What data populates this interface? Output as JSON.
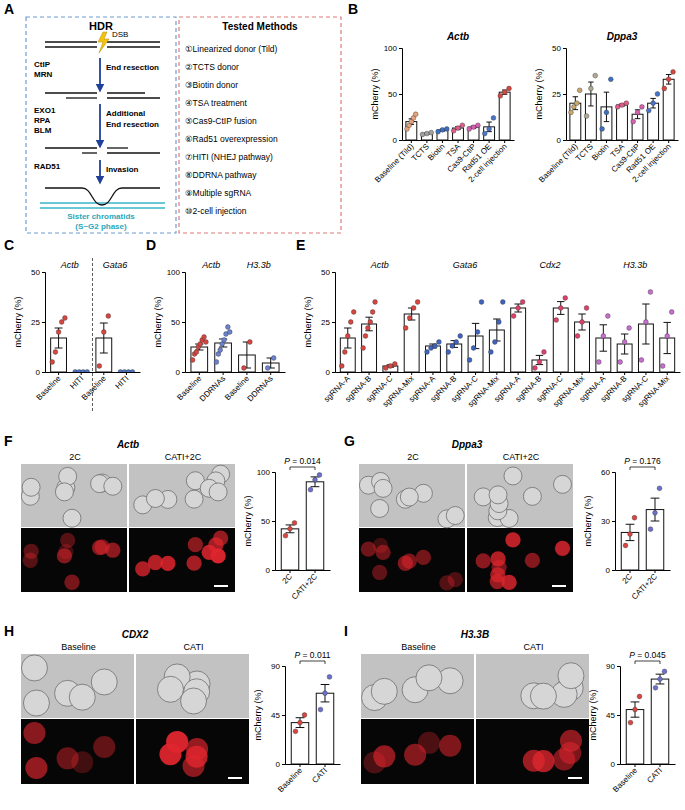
{
  "diagram": {
    "label": "A",
    "hdr": {
      "title": "HDR",
      "dsb": "DSB",
      "steps": [
        {
          "factors": [
            "CtIP",
            "MRN"
          ],
          "text": [
            "End resection"
          ]
        },
        {
          "factors": [
            "EXO1",
            "RPA",
            "BLM"
          ],
          "text": [
            "Additional",
            "End resection"
          ]
        },
        {
          "factors": [
            "RAD51"
          ],
          "text": [
            "Invasion"
          ]
        }
      ],
      "caption": [
        "Sister chromatids",
        "(S~G2 phase)"
      ]
    },
    "methods": {
      "title": "Tested Methods",
      "items": [
        "①Linearized donor (Tild)",
        "②TCTS donor",
        "③Biotin donor",
        "④TSA treatment",
        "⑤Cas9-CtIP fusion",
        "⑥Rad51 overexpression",
        "⑦HITI (NHEJ pathway)",
        "⑧DDRNA pathway",
        "⑨Multiple sgRNA",
        "⑩2-cell injection"
      ]
    }
  },
  "chart_data": [
    {
      "type": "bar",
      "label": "B",
      "title": "Actb",
      "y_label": "mCherry (%)",
      "ylim": [
        0,
        100
      ],
      "yticks": [
        0,
        50,
        100
      ],
      "groups": [
        {
          "categories": [
            "Baseline (Tild)",
            "TCTS",
            "Biotin",
            "TSA",
            "Cas9-CtiP",
            "Rad51 OE",
            "2-cell injection"
          ],
          "values": [
            20,
            7,
            10.7,
            13,
            14,
            14.3,
            52
          ],
          "errors": [
            3,
            0.6,
            1,
            1.7,
            1.2,
            5.2,
            2.3
          ],
          "points": [
            [
              12,
              16,
              20,
              24,
              28
            ],
            [
              6,
              7,
              8
            ],
            [
              9,
              11,
              12
            ],
            [
              10,
              13,
              16
            ],
            [
              12,
              14,
              16
            ],
            [
              7,
              12,
              24
            ],
            [
              48,
              52,
              56
            ]
          ],
          "colors": [
            "#e8a27c",
            "#a0a0a0",
            "#3b6fc4",
            "#e05c8a",
            "#d65fb0",
            "#4a74c9",
            "#d9453f"
          ]
        }
      ]
    },
    {
      "type": "bar",
      "title": "Dppa3",
      "y_label": "mCherry (%)",
      "ylim": [
        0,
        50
      ],
      "yticks": [
        0,
        25,
        50
      ],
      "groups": [
        {
          "categories": [
            "Baseline (Tild)",
            "TCTS",
            "Biotin",
            "TSA",
            "Cas9-CtiP",
            "Rad51 OE",
            "2-cell injection"
          ],
          "values": [
            20,
            25,
            18,
            19,
            14,
            20,
            33
          ],
          "errors": [
            3.5,
            6.5,
            8,
            0.6,
            2.4,
            2.6,
            2.6
          ],
          "points": [
            [
              15,
              18,
              20,
              27
            ],
            [
              13,
              28,
              35
            ],
            [
              6,
              15,
              33
            ],
            [
              18,
              19,
              20
            ],
            [
              10,
              15,
              18
            ],
            [
              16,
              20,
              25
            ],
            [
              28,
              33,
              37
            ]
          ],
          "colors": [
            "#c8a86a",
            "#b0a890",
            "#3b6fc4",
            "#e05c8a",
            "#d65fb0",
            "#4a74c9",
            "#d9453f"
          ]
        }
      ]
    },
    {
      "type": "bar",
      "label": "C",
      "y_label": "mCherry (%)",
      "ylim": [
        0,
        50
      ],
      "yticks": [
        0,
        25,
        50
      ],
      "groups": [
        {
          "title": "Actb",
          "categories": [
            "Baseline",
            "HITI"
          ],
          "values": [
            17,
            0
          ],
          "errors": [
            5,
            0
          ],
          "points": [
            [
              5,
              10,
              20,
              25,
              27
            ],
            [
              0,
              0,
              0,
              0
            ]
          ],
          "colors": [
            "#d9453f",
            "#4a74c9"
          ]
        },
        {
          "title": "Gata6",
          "categories": [
            "Baseline",
            "HITI"
          ],
          "values": [
            17,
            0
          ],
          "errors": [
            7.5,
            0
          ],
          "points": [
            [
              3,
              20,
              28
            ],
            [
              0,
              0,
              0,
              0
            ]
          ],
          "colors": [
            "#d9453f",
            "#4a74c9"
          ]
        }
      ]
    },
    {
      "type": "bar",
      "label": "D",
      "y_label": "mCherry (%)",
      "ylim": [
        0,
        100
      ],
      "yticks": [
        0,
        50,
        100
      ],
      "groups": [
        {
          "title": "Actb",
          "categories": [
            "Baseline",
            "DDRNAs"
          ],
          "values": [
            25,
            29
          ],
          "errors": [
            3,
            4
          ],
          "points": [
            [
              12,
              18,
              20,
              25,
              28,
              32,
              35,
              30
            ],
            [
              10,
              18,
              22,
              28,
              32,
              38,
              45,
              40
            ]
          ],
          "colors": [
            "#d9453f",
            "#6a82d0"
          ]
        },
        {
          "title": "H3.3b",
          "categories": [
            "Baseline",
            "DDRNAs"
          ],
          "values": [
            17,
            9
          ],
          "errors": [
            13,
            5
          ],
          "points": [
            [
              4,
              30
            ],
            [
              4,
              14
            ]
          ],
          "colors": [
            "#d9453f",
            "#6a82d0"
          ]
        }
      ]
    },
    {
      "type": "bar",
      "label": "E",
      "y_label": "mCherry (%)",
      "ylim": [
        0,
        50
      ],
      "yticks": [
        0,
        25,
        50
      ],
      "groups": [
        {
          "title": "Actb",
          "categories": [
            "sgRNA-A",
            "sgRNA-B",
            "sgRNA-C",
            "sgRNA-Mix"
          ],
          "values": [
            17,
            24,
            3,
            29
          ],
          "errors": [
            5,
            3.4,
            0.6,
            3
          ],
          "points": [
            [
              3,
              10,
              18,
              25,
              30
            ],
            [
              12,
              18,
              22,
              25,
              30,
              35
            ],
            [
              2,
              3,
              4
            ],
            [
              22,
              27,
              32,
              35
            ]
          ],
          "colors": [
            "#d9453f",
            "#d9453f",
            "#d9453f",
            "#d9453f"
          ]
        },
        {
          "title": "Gata6",
          "categories": [
            "sgRNA-A",
            "sgRNA-B",
            "sgRNA-C",
            "sgRNA-Mix"
          ],
          "values": [
            13,
            14,
            18,
            21
          ],
          "errors": [
            1,
            1.7,
            6.3,
            5.5
          ],
          "points": [
            [
              10,
              12,
              13,
              15
            ],
            [
              10,
              13,
              15,
              18
            ],
            [
              6,
              12,
              20,
              35
            ],
            [
              10,
              15,
              25,
              35
            ]
          ],
          "colors": [
            "#3f63c0",
            "#3f63c0",
            "#3f63c0",
            "#3f63c0"
          ]
        },
        {
          "title": "Cdx2",
          "categories": [
            "sgRNA-A",
            "sgRNA-B",
            "sgRNA-C",
            "sgRNA-Mix"
          ],
          "values": [
            32,
            6,
            32,
            25
          ],
          "errors": [
            2,
            2.3,
            3.2,
            4
          ],
          "points": [
            [
              28,
              32,
              35
            ],
            [
              2,
              5,
              10
            ],
            [
              26,
              32,
              37
            ],
            [
              18,
              25,
              32
            ]
          ],
          "colors": [
            "#e0406a",
            "#e0406a",
            "#e0406a",
            "#e0406a"
          ]
        },
        {
          "title": "H3.3b",
          "categories": [
            "sgRNA-A",
            "sgRNA-B",
            "sgRNA-C",
            "sgRNA-Mix"
          ],
          "values": [
            17,
            14,
            24,
            17
          ],
          "errors": [
            6.6,
            5,
            10,
            7.8
          ],
          "points": [
            [
              5,
              18,
              28
            ],
            [
              5,
              15,
              22
            ],
            [
              6,
              25,
              40
            ],
            [
              3,
              18,
              30
            ]
          ],
          "colors": [
            "#c86ed0",
            "#c86ed0",
            "#c86ed0",
            "#c86ed0"
          ]
        }
      ]
    },
    {
      "type": "bar",
      "label": "F",
      "title": "Actb",
      "y_label": "mCherry (%)",
      "ylim": [
        0,
        100
      ],
      "yticks": [
        0,
        50,
        100
      ],
      "image_labels": [
        "2C",
        "CATI+2C"
      ],
      "annotations": [
        "P = 0.014"
      ],
      "groups": [
        {
          "categories": [
            "2C",
            "CATI+2C"
          ],
          "values": [
            42,
            90
          ],
          "errors": [
            4,
            5
          ],
          "points": [
            [
              35,
              42,
              48
            ],
            [
              82,
              92,
              97
            ]
          ],
          "colors": [
            "#d9453f",
            "#6a6fd0"
          ]
        }
      ]
    },
    {
      "type": "bar",
      "label": "G",
      "title": "Dppa3",
      "y_label": "mCherry (%)",
      "ylim": [
        0,
        60
      ],
      "yticks": [
        0,
        30,
        60
      ],
      "image_labels": [
        "2C",
        "CATI+2C"
      ],
      "annotations": [
        "P = 0.176"
      ],
      "groups": [
        {
          "categories": [
            "2C",
            "CATI+2C"
          ],
          "values": [
            23,
            37
          ],
          "errors": [
            5,
            7
          ],
          "points": [
            [
              15,
              22,
              32
            ],
            [
              25,
              35,
              50
            ]
          ],
          "colors": [
            "#d9453f",
            "#6a6fd0"
          ]
        }
      ]
    },
    {
      "type": "bar",
      "label": "H",
      "title": "CDX2",
      "y_label": "mCherry (%)",
      "ylim": [
        0,
        90
      ],
      "yticks": [
        0,
        45,
        90
      ],
      "image_labels": [
        "Baseline",
        "CATI"
      ],
      "annotations": [
        "P = 0.011"
      ],
      "groups": [
        {
          "categories": [
            "Baseline",
            "CATI"
          ],
          "values": [
            38,
            65
          ],
          "errors": [
            4.5,
            8
          ],
          "points": [
            [
              30,
              38,
              45
            ],
            [
              50,
              65,
              80
            ]
          ],
          "colors": [
            "#d9453f",
            "#6a6fd0"
          ]
        }
      ]
    },
    {
      "type": "bar",
      "label": "I",
      "title": "H3.3B",
      "y_label": "mCherry (%)",
      "ylim": [
        0,
        90
      ],
      "yticks": [
        0,
        45,
        90
      ],
      "image_labels": [
        "Baseline",
        "CATI"
      ],
      "annotations": [
        "P = 0.045"
      ],
      "groups": [
        {
          "categories": [
            "Baseline",
            "CATI"
          ],
          "values": [
            50,
            78
          ],
          "errors": [
            7,
            4.5
          ],
          "points": [
            [
              38,
              50,
              62
            ],
            [
              70,
              78,
              85
            ]
          ],
          "colors": [
            "#d9453f",
            "#6a6fd0"
          ]
        }
      ]
    }
  ]
}
